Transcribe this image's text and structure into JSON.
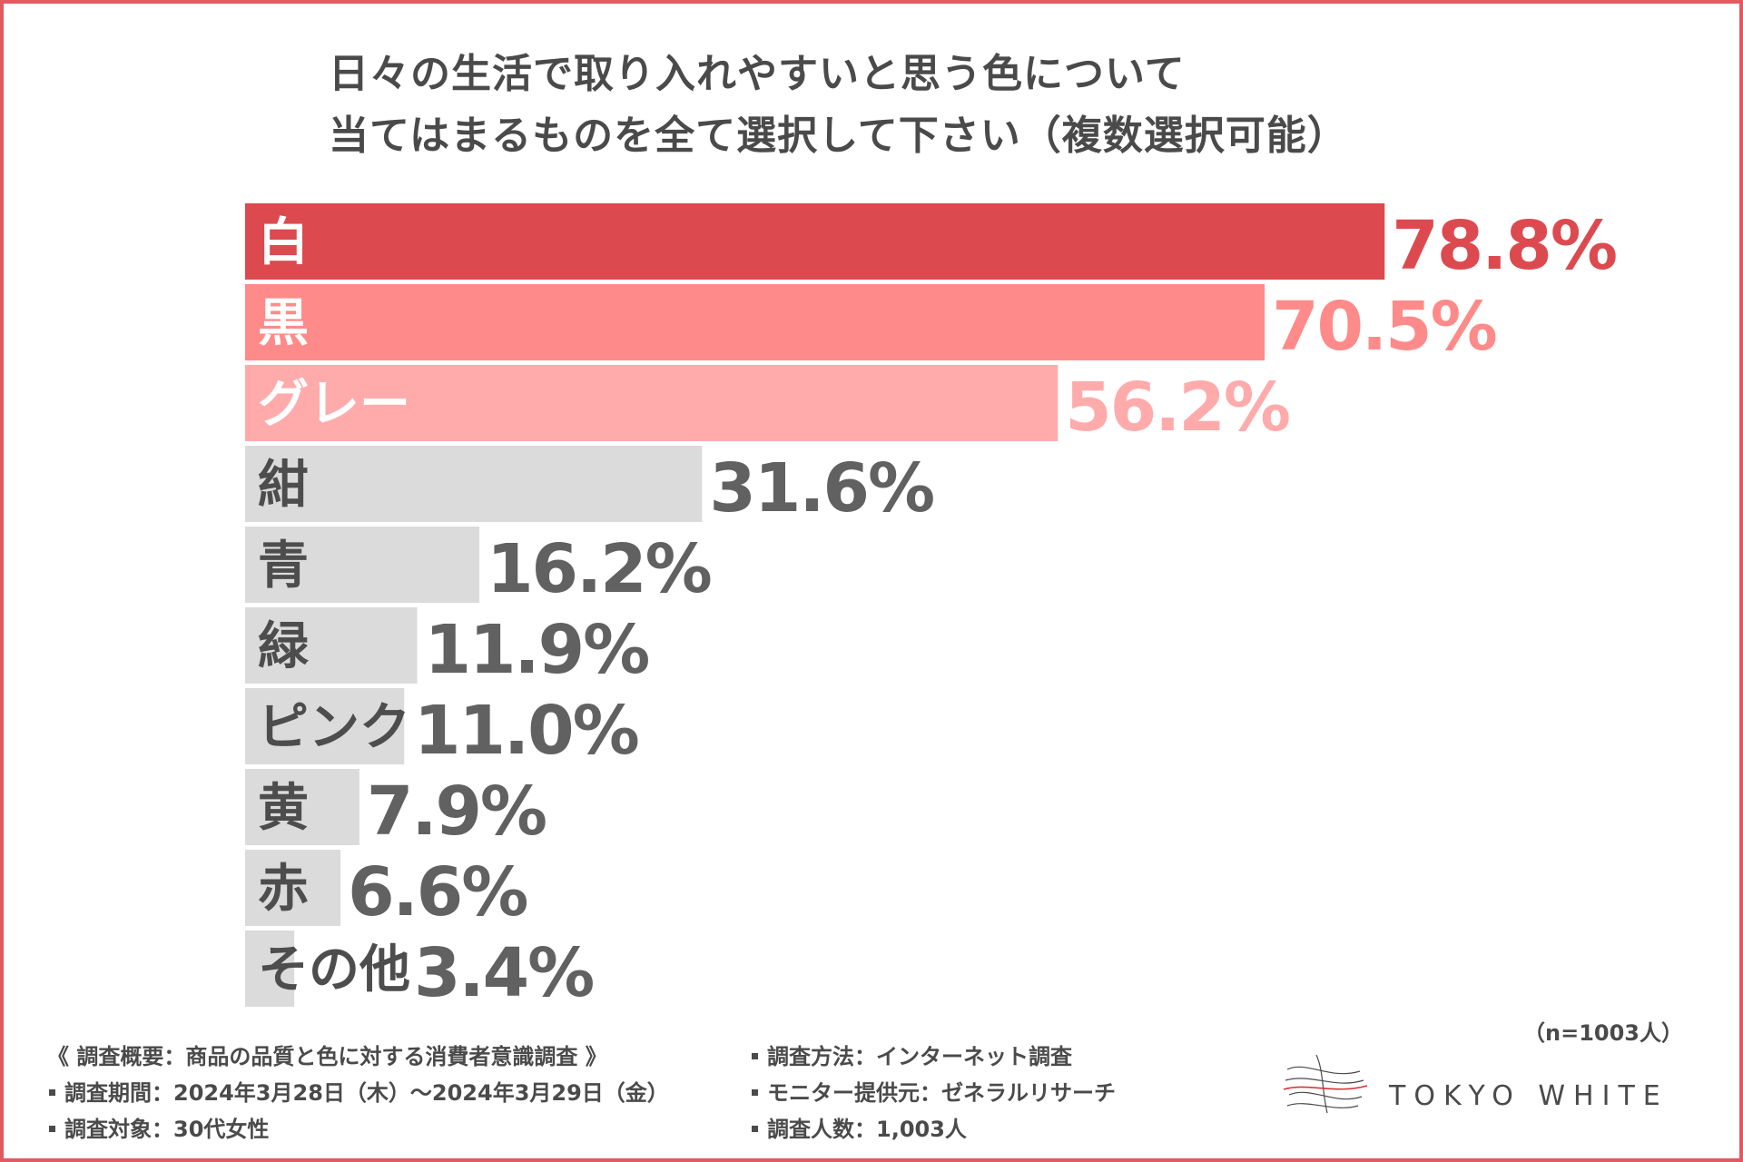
{
  "title": {
    "line1": "日々の生活で取り入れやすいと思う色について",
    "line2": "当てはまるものを全て選択して下さい（複数選択可能）"
  },
  "chart_data": {
    "type": "bar",
    "orientation": "horizontal",
    "title": "日々の生活で取り入れやすいと思う色について 当てはまるものを全て選択して下さい（複数選択可能）",
    "categories": [
      "白",
      "黒",
      "グレー",
      "紺",
      "青",
      "緑",
      "ピンク",
      "黄",
      "赤",
      "その他"
    ],
    "values": [
      78.8,
      70.5,
      56.2,
      31.6,
      16.2,
      11.9,
      11.0,
      7.9,
      6.6,
      3.4
    ],
    "value_labels": [
      "78.8%",
      "70.5%",
      "56.2%",
      "31.6%",
      "16.2%",
      "11.9%",
      "11.0%",
      "7.9%",
      "6.6%",
      "3.4%"
    ],
    "unit": "%",
    "xlim": [
      0,
      100
    ],
    "colors": {
      "rank1": "#dc4a4f",
      "rank2": "#ff8a8a",
      "rank3": "#ffabab",
      "other": "#dbdbdb",
      "label_on_color": "#ffffff",
      "label_on_gray": "#4d4d4d",
      "value_other": "#616161"
    }
  },
  "sample_note": "（n=1003人）",
  "survey_notes": {
    "left": [
      "《 調査概要：商品の品質と色に対する消費者意識調査 》",
      "調査期間：2024年3月28日（木）～2024年3月29日（金）",
      "調査対象：30代女性"
    ],
    "right": [
      "調査方法：インターネット調査",
      "モニター提供元：ゼネラルリサーチ",
      "調査人数：1,003人"
    ]
  },
  "brand": {
    "name": "TOKYO WHITE",
    "accent": "#d9343b"
  }
}
